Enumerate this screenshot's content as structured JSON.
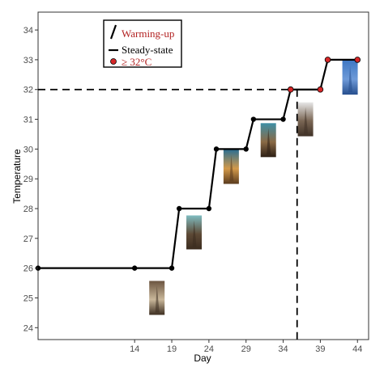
{
  "chart_data": {
    "type": "line",
    "xlabel": "Day",
    "ylabel": "Temperature",
    "xlim": [
      1,
      45.5
    ],
    "ylim": [
      23.6,
      34.6
    ],
    "x_ticks": [
      14,
      19,
      24,
      29,
      34,
      39,
      44
    ],
    "y_ticks": [
      24,
      25,
      26,
      27,
      28,
      29,
      30,
      31,
      32,
      33,
      34
    ],
    "grid": false,
    "legend_position": "top-left",
    "series": [
      {
        "name": "Steady-state",
        "x": [
          1,
          14,
          19,
          20,
          24,
          25,
          29,
          30,
          34,
          35,
          39,
          40,
          44
        ],
        "y": [
          26,
          26,
          26,
          28,
          28,
          30,
          30,
          31,
          31,
          32,
          32,
          33,
          33
        ]
      }
    ],
    "red_points": {
      "name": "≥ 32°C",
      "x": [
        35,
        39,
        40,
        44
      ],
      "y": [
        32,
        32,
        33,
        33
      ]
    },
    "reference_lines": {
      "horizontal_y": 32,
      "vertical_x": 35
    },
    "legend": [
      {
        "label": "Warming-up",
        "symbol": "slash",
        "color": "#b22222"
      },
      {
        "label": "Steady-state",
        "symbol": "line",
        "color": "#000000"
      },
      {
        "label": "≥ 32°C",
        "symbol": "red-dot",
        "color": "#b22222"
      }
    ],
    "photo_thumbnails": [
      {
        "x": 17,
        "y": 25,
        "colors": [
          "#6b5440",
          "#c9b79a",
          "#3d2e21"
        ]
      },
      {
        "x": 22,
        "y": 27.2,
        "colors": [
          "#7fbcc0",
          "#5e4a36",
          "#3b2c1f"
        ]
      },
      {
        "x": 27,
        "y": 29.4,
        "colors": [
          "#2f6f8f",
          "#d39a4a",
          "#5a3b1e"
        ]
      },
      {
        "x": 32,
        "y": 30.3,
        "colors": [
          "#3d8fa6",
          "#8a6a45",
          "#2d1f14"
        ]
      },
      {
        "x": 37,
        "y": 31,
        "colors": [
          "#e7e7e7",
          "#7a6654",
          "#3f3126"
        ]
      },
      {
        "x": 43,
        "y": 32.4,
        "colors": [
          "#3f78c4",
          "#6e9ad8",
          "#274f8e"
        ]
      }
    ],
    "colors": {
      "line": "#000000",
      "point": "#000000",
      "highlight": "#d62728",
      "legend_text_red": "#b22222"
    }
  }
}
